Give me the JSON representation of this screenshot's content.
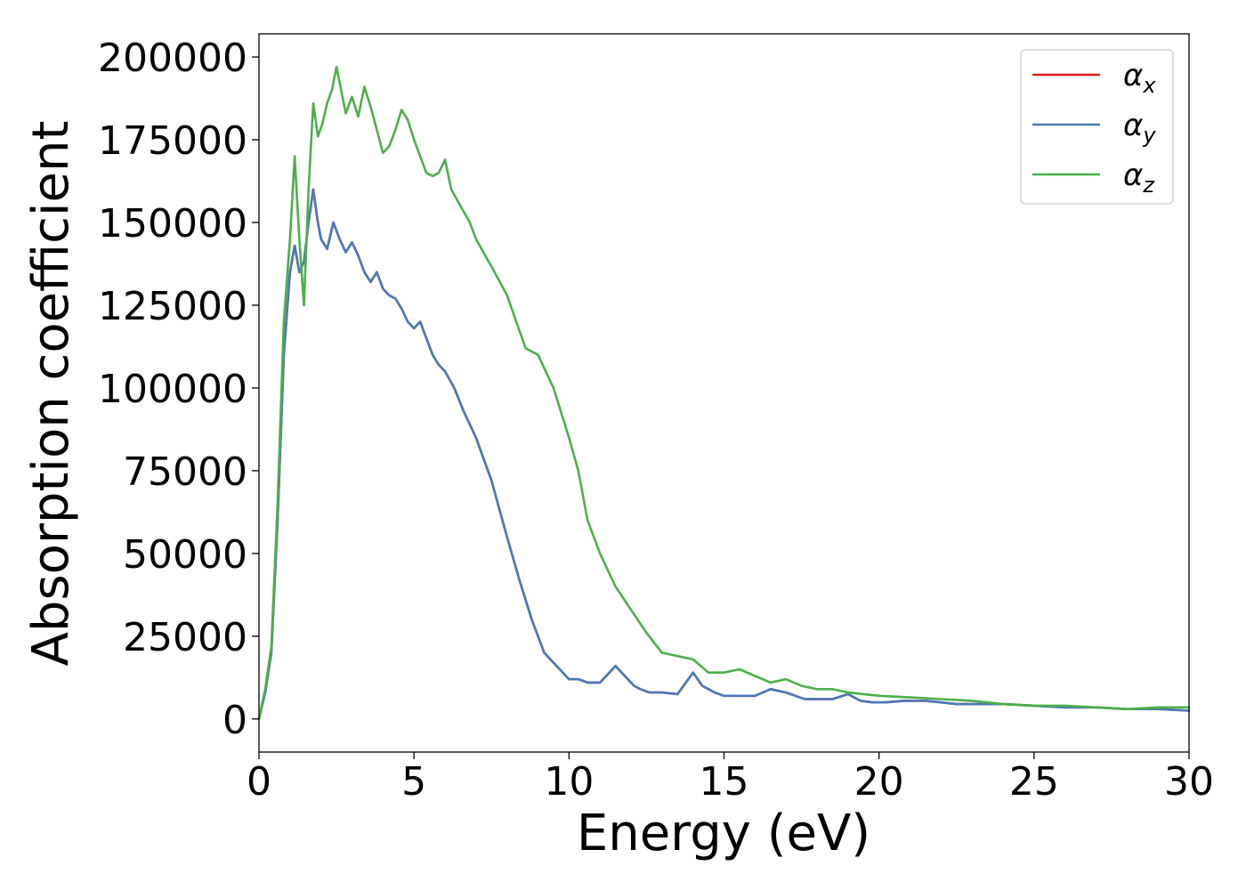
{
  "chart_data": {
    "type": "line",
    "title": "",
    "xlabel": "Energy (eV)",
    "ylabel": "Absorption coefficient",
    "xlim": [
      0,
      30
    ],
    "ylim": [
      -10000,
      207000
    ],
    "xticks": [
      0,
      5,
      10,
      15,
      20,
      25,
      30
    ],
    "xtick_labels": [
      "0",
      "5",
      "10",
      "15",
      "20",
      "25",
      "30"
    ],
    "yticks": [
      0,
      25000,
      50000,
      75000,
      100000,
      125000,
      150000,
      175000,
      200000
    ],
    "ytick_labels": [
      "0",
      "25000",
      "50000",
      "75000",
      "100000",
      "125000",
      "150000",
      "175000",
      "200000"
    ],
    "grid": false,
    "legend_position": "top-right",
    "series": [
      {
        "name": "α",
        "subscript": "x",
        "color": "#e41a1c",
        "x": [
          0,
          0.2,
          0.4,
          0.6,
          0.8,
          1.0,
          1.15,
          1.3,
          1.45,
          1.6,
          1.75,
          1.9,
          2.0,
          2.2,
          2.4,
          2.6,
          2.8,
          3.0,
          3.2,
          3.4,
          3.6,
          3.8,
          4.0,
          4.2,
          4.4,
          4.6,
          4.8,
          5.0,
          5.2,
          5.4,
          5.6,
          5.8,
          6.0,
          6.3,
          6.6,
          7.0,
          7.5,
          8.0,
          8.4,
          8.8,
          9.2,
          9.5,
          9.8,
          10.0,
          10.3,
          10.6,
          11.0,
          11.5,
          11.9,
          12.1,
          12.3,
          12.6,
          13.0,
          13.5,
          14.0,
          14.3,
          14.5,
          14.7,
          15.0,
          15.5,
          16.0,
          16.5,
          17.0,
          17.3,
          17.6,
          18.0,
          18.5,
          19.0,
          19.4,
          19.8,
          20.2,
          20.8,
          21.5,
          22.0,
          22.5,
          23.0,
          24.0,
          25.0,
          26.0,
          27.0,
          28.0,
          29.0,
          30.0
        ],
        "y": [
          0,
          8000,
          20000,
          60000,
          110000,
          135000,
          143000,
          135000,
          138000,
          150000,
          160000,
          150000,
          145000,
          142000,
          150000,
          145000,
          141000,
          144000,
          140000,
          135000,
          132000,
          135000,
          130000,
          128000,
          127000,
          124000,
          120000,
          118000,
          120000,
          115000,
          110000,
          107000,
          105000,
          100000,
          93000,
          85000,
          72000,
          55000,
          42000,
          30000,
          20000,
          17000,
          14000,
          12000,
          12000,
          11000,
          11000,
          16000,
          12000,
          10000,
          9000,
          8000,
          8000,
          7500,
          14000,
          10000,
          9000,
          8000,
          7000,
          7000,
          7000,
          9000,
          8000,
          7000,
          6000,
          6000,
          6000,
          7500,
          5500,
          5000,
          5000,
          5500,
          5500,
          5000,
          4500,
          4500,
          4500,
          4000,
          3500,
          3500,
          3000,
          3000,
          2500
        ]
      },
      {
        "name": "α",
        "subscript": "y",
        "color": "#4a7ab8",
        "x": [
          0,
          0.2,
          0.4,
          0.6,
          0.8,
          1.0,
          1.15,
          1.3,
          1.45,
          1.6,
          1.75,
          1.9,
          2.0,
          2.2,
          2.4,
          2.6,
          2.8,
          3.0,
          3.2,
          3.4,
          3.6,
          3.8,
          4.0,
          4.2,
          4.4,
          4.6,
          4.8,
          5.0,
          5.2,
          5.4,
          5.6,
          5.8,
          6.0,
          6.3,
          6.6,
          7.0,
          7.5,
          8.0,
          8.4,
          8.8,
          9.2,
          9.5,
          9.8,
          10.0,
          10.3,
          10.6,
          11.0,
          11.5,
          11.9,
          12.1,
          12.3,
          12.6,
          13.0,
          13.5,
          14.0,
          14.3,
          14.5,
          14.7,
          15.0,
          15.5,
          16.0,
          16.5,
          17.0,
          17.3,
          17.6,
          18.0,
          18.5,
          19.0,
          19.4,
          19.8,
          20.2,
          20.8,
          21.5,
          22.0,
          22.5,
          23.0,
          24.0,
          25.0,
          26.0,
          27.0,
          28.0,
          29.0,
          30.0
        ],
        "y": [
          0,
          8000,
          20000,
          60000,
          110000,
          135000,
          143000,
          135000,
          138000,
          150000,
          160000,
          150000,
          145000,
          142000,
          150000,
          145000,
          141000,
          144000,
          140000,
          135000,
          132000,
          135000,
          130000,
          128000,
          127000,
          124000,
          120000,
          118000,
          120000,
          115000,
          110000,
          107000,
          105000,
          100000,
          93000,
          85000,
          72000,
          55000,
          42000,
          30000,
          20000,
          17000,
          14000,
          12000,
          12000,
          11000,
          11000,
          16000,
          12000,
          10000,
          9000,
          8000,
          8000,
          7500,
          14000,
          10000,
          9000,
          8000,
          7000,
          7000,
          7000,
          9000,
          8000,
          7000,
          6000,
          6000,
          6000,
          7500,
          5500,
          5000,
          5000,
          5500,
          5500,
          5000,
          4500,
          4500,
          4500,
          4000,
          3500,
          3500,
          3000,
          3000,
          2500
        ]
      },
      {
        "name": "α",
        "subscript": "z",
        "color": "#4daf4a",
        "x": [
          0,
          0.2,
          0.4,
          0.6,
          0.8,
          1.0,
          1.15,
          1.3,
          1.45,
          1.6,
          1.75,
          1.9,
          2.05,
          2.2,
          2.35,
          2.5,
          2.65,
          2.8,
          3.0,
          3.2,
          3.4,
          3.6,
          3.8,
          4.0,
          4.2,
          4.4,
          4.6,
          4.8,
          5.0,
          5.2,
          5.4,
          5.6,
          5.8,
          6.0,
          6.2,
          6.5,
          6.8,
          7.0,
          7.3,
          7.6,
          8.0,
          8.3,
          8.6,
          9.0,
          9.5,
          10.0,
          10.3,
          10.6,
          11.0,
          11.5,
          12.0,
          12.5,
          13.0,
          13.5,
          14.0,
          14.5,
          15.0,
          15.5,
          16.0,
          16.5,
          17.0,
          17.5,
          18.0,
          18.5,
          19.0,
          20.0,
          21.0,
          22.0,
          23.0,
          24.0,
          25.0,
          26.0,
          27.0,
          28.0,
          29.0,
          30.0
        ],
        "y": [
          0,
          9000,
          22000,
          65000,
          120000,
          145000,
          170000,
          145000,
          125000,
          160000,
          186000,
          176000,
          180000,
          186000,
          190000,
          197000,
          190000,
          183000,
          188000,
          182000,
          191000,
          185000,
          178000,
          171000,
          173000,
          178000,
          184000,
          181000,
          175000,
          170000,
          165000,
          164000,
          165000,
          169000,
          160000,
          155000,
          150000,
          145000,
          140000,
          135000,
          128000,
          120000,
          112000,
          110000,
          100000,
          85000,
          75000,
          60000,
          50000,
          40000,
          33000,
          26000,
          20000,
          19000,
          18000,
          14000,
          14000,
          15000,
          13000,
          11000,
          12000,
          10000,
          9000,
          9000,
          8000,
          7000,
          6500,
          6000,
          5500,
          4500,
          4000,
          4000,
          3500,
          3000,
          3500,
          3500
        ]
      }
    ]
  }
}
